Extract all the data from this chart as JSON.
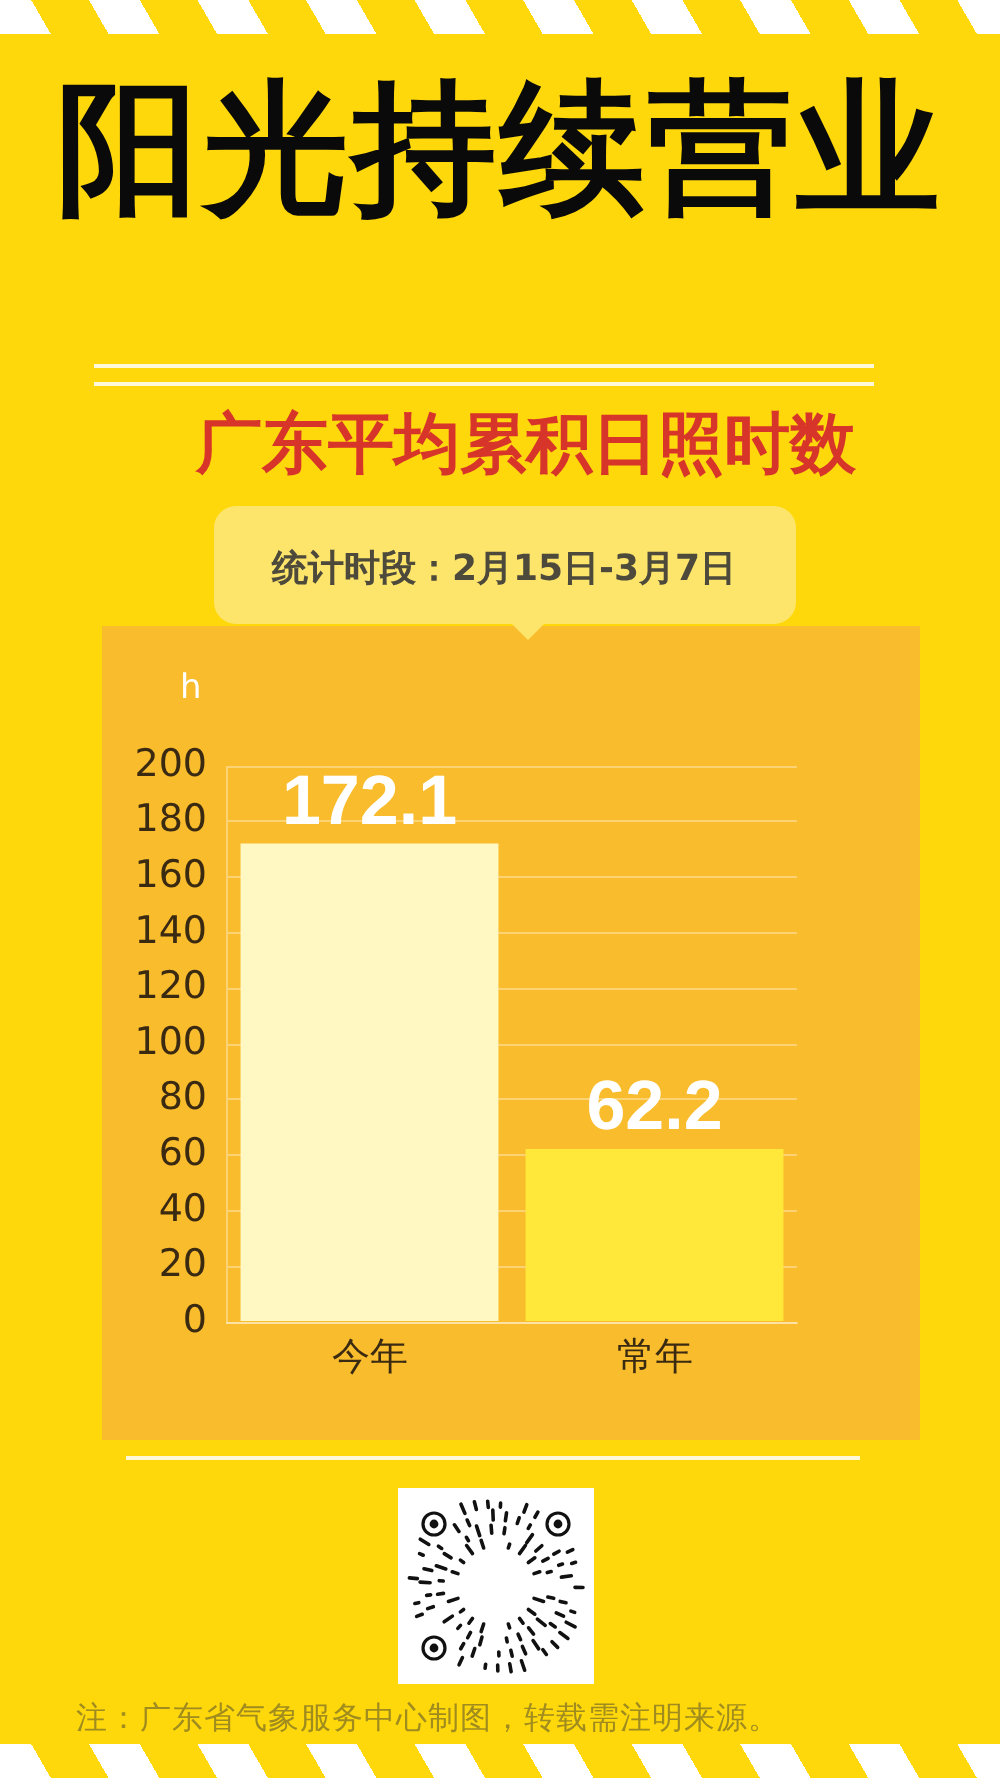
{
  "chart_data": {
    "type": "bar",
    "title": "阳光持续营业",
    "subtitle": "广东平均累积日照时数",
    "annotations": [
      "统计时段：2月15日-3月7日",
      "注：广东省气象服务中心制图，转载需注明来源。"
    ],
    "ylabel": "h",
    "categories": [
      "今年",
      "常年"
    ],
    "values": [
      172.1,
      62.2
    ],
    "colors": [
      "#fff8c2",
      "#ffe83a"
    ],
    "ylim": [
      0,
      200
    ],
    "yticks": [
      0,
      20,
      40,
      60,
      80,
      100,
      120,
      140,
      160,
      180,
      200
    ],
    "grid": "y",
    "data_labels": true
  }
}
